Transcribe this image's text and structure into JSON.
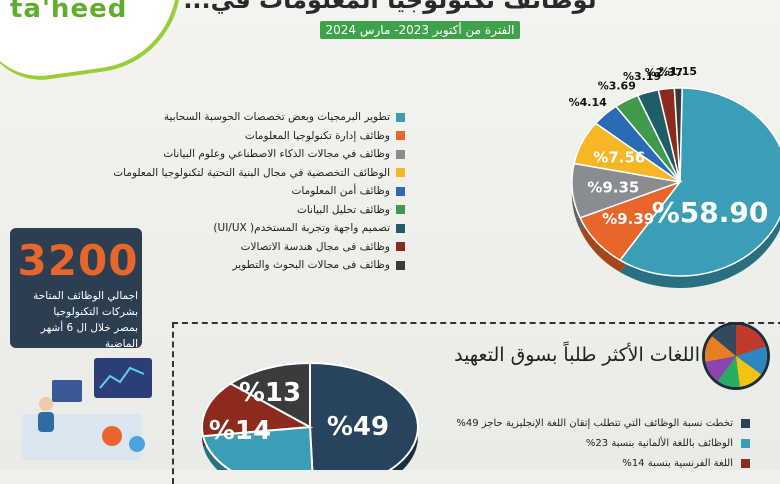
{
  "header": {
    "logo": "ta'heed",
    "title": "...لوظائف تكنولوجيا المعلومات في مصر",
    "period": "الفترة من أكتوبر 2023- مارس 2024"
  },
  "colors": {
    "teal": "#3a9eb6",
    "orange": "#e8662a",
    "gray": "#8a8d8f",
    "yellow": "#f6b625",
    "blue": "#2a6cb4",
    "green": "#3f9a4a",
    "darkteal": "#1f5d68",
    "maroon": "#8b2a1d",
    "dark": "#3a3b3d",
    "navy": "#27435e"
  },
  "chart_data": [
    {
      "type": "pie",
      "title": "",
      "labels": [
        "تطوير البرمجيات وبعض تخصصات الحوسبة السحابية",
        "وظائف إدارة تكنولوجيا المعلومات",
        "وظائف في مجالات الذكاء الاصطناعي وعلوم البيانات",
        "الوظائف التخصصية في مجال البنية التحتية لتكنولوجيا المعلومات",
        "وظائف أمن المعلومات",
        "وظائف تحليل البيانات",
        "تصميم واجهة وتجربة المستخدم( UI/UX)",
        "وظائف فى مجال هندسة الاتصالات",
        "وظائف فى مجالات البحوث والتطوير"
      ],
      "values": [
        58.9,
        9.39,
        9.35,
        7.56,
        4.14,
        3.69,
        3.19,
        2.37,
        1.15
      ],
      "value_labels": [
        "%58.90",
        "%9.39",
        "%9.35",
        "%7.56",
        "%4.14",
        "%3.69",
        "%3.19",
        "%2.37",
        "%1.15"
      ],
      "colors": [
        "#3a9eb6",
        "#e8662a",
        "#8a8d8f",
        "#f6b625",
        "#2a6cb4",
        "#3f9a4a",
        "#1f5d68",
        "#8b2a1d",
        "#3a3b3d"
      ]
    },
    {
      "type": "pie",
      "title": "اللغات الأكثر طلباً بسوق التعهيد",
      "labels": [
        "تخطت نسبة الوظائف التي تتطلب إتقان اللغة الإنجليزية حاجز 49%",
        "الوظائف باللغة الألمانية بنسبة 23%",
        "اللغة الفرنسية بنسبة 14%",
        ""
      ],
      "values": [
        49,
        23,
        14,
        13
      ],
      "value_labels": [
        "%49",
        "",
        "%14",
        "%13"
      ],
      "colors": [
        "#27435e",
        "#3a9eb6",
        "#8b2a1d",
        "#3a3b3d"
      ]
    }
  ],
  "stat": {
    "number": "3200",
    "text_lines": [
      "اجمالي الوظائف المتاحة",
      "بشركات التكنولوجيا",
      "بمصر خلال ال 6 أشهر",
      "الماضية"
    ]
  }
}
